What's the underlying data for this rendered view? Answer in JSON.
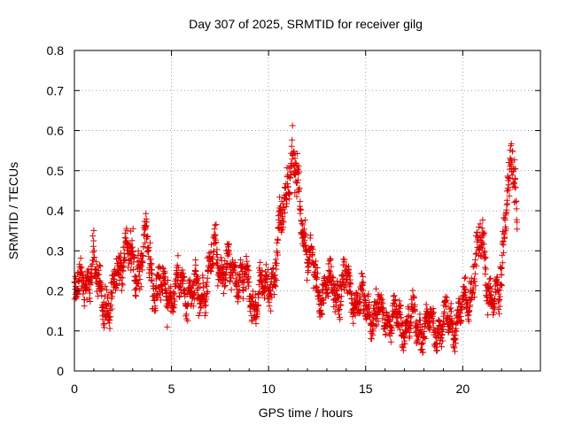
{
  "chart_data": {
    "type": "scatter",
    "title": "Day 307 of 2025, SRMTID for receiver gilg",
    "xlabel": "GPS time / hours",
    "ylabel": "SRMTID / TECUs",
    "xlim": [
      0,
      24
    ],
    "ylim": [
      0,
      0.8
    ],
    "x_ticks": [
      0,
      5,
      10,
      15,
      20
    ],
    "x_tick_labels": [
      "0",
      "5",
      "10",
      "15",
      "20"
    ],
    "y_ticks": [
      0,
      0.1,
      0.2,
      0.3,
      0.4,
      0.5,
      0.6,
      0.7,
      0.8
    ],
    "y_tick_labels": [
      "0",
      "0.1",
      "0.2",
      "0.3",
      "0.4",
      "0.5",
      "0.6",
      "0.7",
      "0.8"
    ],
    "grid": true,
    "marker": "plus",
    "series": [
      {
        "name": "SRMTID",
        "color": "#dd0000",
        "trend": {
          "x": [
            0,
            0.3,
            0.6,
            1.0,
            1.4,
            1.8,
            2.0,
            2.2,
            2.6,
            3.0,
            3.4,
            3.7,
            4.0,
            4.5,
            5.0,
            5.5,
            6.0,
            6.5,
            7.0,
            7.3,
            7.6,
            8.0,
            8.4,
            8.8,
            9.2,
            9.6,
            10.0,
            10.4,
            10.7,
            11.0,
            11.3,
            11.6,
            12.0,
            12.5,
            13.0,
            13.5,
            14.0,
            14.5,
            15.0,
            15.5,
            16.0,
            16.5,
            17.0,
            17.5,
            18.0,
            18.5,
            19.0,
            19.5,
            20.0,
            20.3,
            20.6,
            21.0,
            21.3,
            21.6,
            21.9,
            22.2,
            22.5,
            22.8
          ],
          "y": [
            0.19,
            0.21,
            0.24,
            0.25,
            0.21,
            0.14,
            0.18,
            0.27,
            0.3,
            0.27,
            0.26,
            0.33,
            0.24,
            0.2,
            0.2,
            0.21,
            0.19,
            0.19,
            0.25,
            0.3,
            0.26,
            0.24,
            0.26,
            0.21,
            0.18,
            0.19,
            0.22,
            0.27,
            0.4,
            0.5,
            0.52,
            0.42,
            0.29,
            0.21,
            0.2,
            0.21,
            0.22,
            0.18,
            0.16,
            0.14,
            0.14,
            0.13,
            0.12,
            0.12,
            0.11,
            0.11,
            0.12,
            0.12,
            0.15,
            0.18,
            0.26,
            0.32,
            0.22,
            0.16,
            0.18,
            0.42,
            0.52,
            0.38
          ]
        },
        "spread": 0.05,
        "n_points": 2100
      }
    ]
  }
}
